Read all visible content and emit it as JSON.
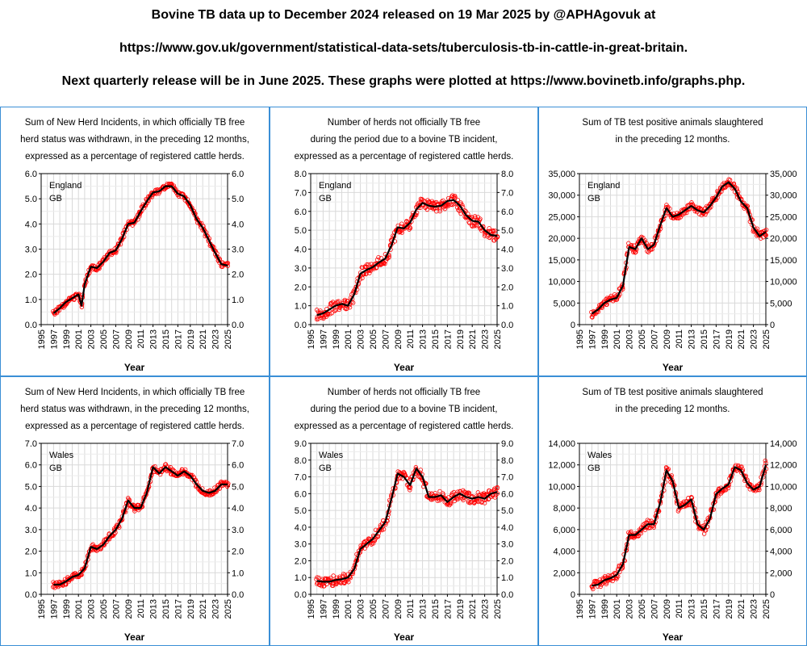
{
  "header": {
    "line1": "Bovine TB data up to December 2024 released on 19 Mar 2025 by @APHAgovuk at",
    "line2": "https://www.gov.uk/government/statistical-data-sets/tuberculosis-tb-in-cattle-in-great-britain.",
    "line3": "Next quarterly release will be in June 2025. These graphs were plotted at https://www.bovinetb.info/graphs.php."
  },
  "colors": {
    "border": "#3a8fd6",
    "points": "#ff0000",
    "trend": "#000000",
    "grid": "#d9d9d9"
  },
  "chart_data": [
    {
      "type": "scatter",
      "title_lines": [
        "Sum of New Herd Incidents, in which officially TB free",
        "herd status was withdrawn, in the preceding 12 months,",
        "expressed as a percentage of registered cattle herds."
      ],
      "region": "England",
      "sub": "GB",
      "xlabel": "Year",
      "xlim": [
        1995,
        2025
      ],
      "xticks": [
        "1995",
        "1997",
        "1999",
        "2001",
        "2003",
        "2005",
        "2007",
        "2009",
        "2011",
        "2013",
        "2015",
        "2017",
        "2019",
        "2021",
        "2023",
        "2025"
      ],
      "ylim": [
        0,
        6
      ],
      "yticks": [
        "0.0",
        "1.0",
        "2.0",
        "3.0",
        "4.0",
        "5.0",
        "6.0"
      ],
      "trend": [
        [
          1997,
          0.45
        ],
        [
          1998,
          0.65
        ],
        [
          1999,
          0.9
        ],
        [
          2000,
          1.05
        ],
        [
          2001,
          1.2
        ],
        [
          2001.5,
          0.75
        ],
        [
          2002,
          1.6
        ],
        [
          2003,
          2.3
        ],
        [
          2004,
          2.25
        ],
        [
          2005,
          2.5
        ],
        [
          2006,
          2.85
        ],
        [
          2007,
          2.95
        ],
        [
          2008,
          3.4
        ],
        [
          2009,
          4.0
        ],
        [
          2010,
          4.05
        ],
        [
          2011,
          4.5
        ],
        [
          2012,
          4.9
        ],
        [
          2013,
          5.25
        ],
        [
          2014,
          5.3
        ],
        [
          2015,
          5.5
        ],
        [
          2016,
          5.5
        ],
        [
          2017,
          5.2
        ],
        [
          2018,
          5.1
        ],
        [
          2019,
          4.75
        ],
        [
          2020,
          4.2
        ],
        [
          2021,
          3.85
        ],
        [
          2022,
          3.35
        ],
        [
          2023,
          2.85
        ],
        [
          2024,
          2.4
        ],
        [
          2025,
          2.35
        ]
      ],
      "jitter": 0.1
    },
    {
      "type": "scatter",
      "title_lines": [
        "Number of herds not officially TB free",
        "during the period due to a bovine TB incident,",
        "expressed as a percentage of registered cattle herds."
      ],
      "region": "England",
      "sub": "GB",
      "xlabel": "Year",
      "xlim": [
        1995,
        2025
      ],
      "xticks": [
        "1995",
        "1997",
        "1999",
        "2001",
        "2003",
        "2005",
        "2007",
        "2009",
        "2011",
        "2013",
        "2015",
        "2017",
        "2019",
        "2021",
        "2023",
        "2025"
      ],
      "ylim": [
        0,
        8
      ],
      "yticks": [
        "0.0",
        "1.0",
        "2.0",
        "3.0",
        "4.0",
        "5.0",
        "6.0",
        "7.0",
        "8.0"
      ],
      "trend": [
        [
          1996,
          0.5
        ],
        [
          1997,
          0.6
        ],
        [
          1998,
          0.8
        ],
        [
          1999,
          1.0
        ],
        [
          2000,
          1.1
        ],
        [
          2001,
          1.0
        ],
        [
          2002,
          1.6
        ],
        [
          2003,
          2.7
        ],
        [
          2004,
          2.9
        ],
        [
          2005,
          3.05
        ],
        [
          2006,
          3.3
        ],
        [
          2007,
          3.5
        ],
        [
          2008,
          4.2
        ],
        [
          2009,
          5.15
        ],
        [
          2010,
          5.1
        ],
        [
          2011,
          5.4
        ],
        [
          2012,
          6.1
        ],
        [
          2013,
          6.45
        ],
        [
          2014,
          6.3
        ],
        [
          2015,
          6.25
        ],
        [
          2016,
          6.3
        ],
        [
          2017,
          6.55
        ],
        [
          2018,
          6.6
        ],
        [
          2019,
          6.3
        ],
        [
          2020,
          5.8
        ],
        [
          2021,
          5.5
        ],
        [
          2022,
          5.45
        ],
        [
          2023,
          5.0
        ],
        [
          2024,
          4.75
        ],
        [
          2025,
          4.7
        ]
      ],
      "jitter": 0.3
    },
    {
      "type": "scatter",
      "title_lines": [
        "Sum of TB test positive animals slaughtered",
        "in the preceding 12 months."
      ],
      "region": "England",
      "sub": "GB",
      "xlabel": "Year",
      "xlim": [
        1995,
        2025
      ],
      "xticks": [
        "1995",
        "1997",
        "1999",
        "2001",
        "2003",
        "2005",
        "2007",
        "2009",
        "2011",
        "2013",
        "2015",
        "2017",
        "2019",
        "2021",
        "2023",
        "2025"
      ],
      "ylim": [
        0,
        35000
      ],
      "yticks": [
        "0",
        "5,000",
        "10,000",
        "15,000",
        "20,000",
        "25,000",
        "30,000",
        "35,000"
      ],
      "trend": [
        [
          1997,
          2500
        ],
        [
          1998,
          3500
        ],
        [
          1999,
          5000
        ],
        [
          2000,
          5800
        ],
        [
          2001,
          6200
        ],
        [
          2002,
          9000
        ],
        [
          2003,
          18000
        ],
        [
          2004,
          17500
        ],
        [
          2005,
          20000
        ],
        [
          2006,
          17500
        ],
        [
          2007,
          18500
        ],
        [
          2008,
          23000
        ],
        [
          2009,
          27000
        ],
        [
          2010,
          25000
        ],
        [
          2011,
          25500
        ],
        [
          2012,
          26500
        ],
        [
          2013,
          27500
        ],
        [
          2014,
          26500
        ],
        [
          2015,
          26000
        ],
        [
          2016,
          27500
        ],
        [
          2017,
          29500
        ],
        [
          2018,
          32000
        ],
        [
          2019,
          33000
        ],
        [
          2020,
          31500
        ],
        [
          2021,
          28500
        ],
        [
          2022,
          27000
        ],
        [
          2023,
          22500
        ],
        [
          2024,
          20500
        ],
        [
          2025,
          21500
        ]
      ],
      "jitter": 900
    },
    {
      "type": "scatter",
      "title_lines": [
        "Sum of New Herd Incidents, in which officially TB free",
        "herd status was withdrawn, in the preceding 12 months,",
        "expressed as a percentage of registered cattle herds."
      ],
      "region": "Wales",
      "sub": "GB",
      "xlabel": "Year",
      "xlim": [
        1995,
        2025
      ],
      "xticks": [
        "1995",
        "1997",
        "1999",
        "2001",
        "2003",
        "2005",
        "2007",
        "2009",
        "2011",
        "2013",
        "2015",
        "2017",
        "2019",
        "2021",
        "2023",
        "2025"
      ],
      "ylim": [
        0,
        7
      ],
      "yticks": [
        "0.0",
        "1.0",
        "2.0",
        "3.0",
        "4.0",
        "5.0",
        "6.0",
        "7.0"
      ],
      "trend": [
        [
          1997,
          0.45
        ],
        [
          1998,
          0.45
        ],
        [
          1999,
          0.6
        ],
        [
          2000,
          0.8
        ],
        [
          2001,
          0.9
        ],
        [
          2002,
          1.2
        ],
        [
          2003,
          2.2
        ],
        [
          2004,
          2.1
        ],
        [
          2005,
          2.3
        ],
        [
          2006,
          2.7
        ],
        [
          2007,
          3.0
        ],
        [
          2008,
          3.5
        ],
        [
          2009,
          4.35
        ],
        [
          2010,
          4.0
        ],
        [
          2011,
          4.0
        ],
        [
          2012,
          4.7
        ],
        [
          2013,
          5.9
        ],
        [
          2014,
          5.6
        ],
        [
          2015,
          5.9
        ],
        [
          2016,
          5.7
        ],
        [
          2017,
          5.5
        ],
        [
          2018,
          5.7
        ],
        [
          2019,
          5.5
        ],
        [
          2020,
          5.1
        ],
        [
          2021,
          4.8
        ],
        [
          2022,
          4.7
        ],
        [
          2023,
          4.8
        ],
        [
          2024,
          5.1
        ],
        [
          2025,
          5.1
        ]
      ],
      "jitter": 0.15
    },
    {
      "type": "scatter",
      "title_lines": [
        "Number of herds not officially TB free",
        "during the period due to a bovine TB incident,",
        "expressed as a percentage of registered cattle herds."
      ],
      "region": "Wales",
      "sub": "GB",
      "xlabel": "Year",
      "xlim": [
        1995,
        2025
      ],
      "xticks": [
        "1995",
        "1997",
        "1999",
        "2001",
        "2003",
        "2005",
        "2007",
        "2009",
        "2011",
        "2013",
        "2015",
        "2017",
        "2019",
        "2021",
        "2023",
        "2025"
      ],
      "ylim": [
        0,
        9
      ],
      "yticks": [
        "0.0",
        "1.0",
        "2.0",
        "3.0",
        "4.0",
        "5.0",
        "6.0",
        "7.0",
        "8.0",
        "9.0"
      ],
      "trend": [
        [
          1996,
          0.8
        ],
        [
          1997,
          0.75
        ],
        [
          1998,
          0.75
        ],
        [
          1999,
          0.85
        ],
        [
          2000,
          0.9
        ],
        [
          2001,
          1.0
        ],
        [
          2002,
          1.5
        ],
        [
          2003,
          2.7
        ],
        [
          2004,
          3.0
        ],
        [
          2005,
          3.3
        ],
        [
          2006,
          3.8
        ],
        [
          2007,
          4.3
        ],
        [
          2008,
          5.7
        ],
        [
          2009,
          7.2
        ],
        [
          2010,
          7.0
        ],
        [
          2011,
          6.5
        ],
        [
          2012,
          7.5
        ],
        [
          2013,
          7.0
        ],
        [
          2014,
          5.8
        ],
        [
          2015,
          5.8
        ],
        [
          2016,
          5.9
        ],
        [
          2017,
          5.5
        ],
        [
          2018,
          5.8
        ],
        [
          2019,
          6.0
        ],
        [
          2020,
          5.8
        ],
        [
          2021,
          5.7
        ],
        [
          2022,
          5.8
        ],
        [
          2023,
          5.7
        ],
        [
          2024,
          6.0
        ],
        [
          2025,
          6.1
        ]
      ],
      "jitter": 0.3
    },
    {
      "type": "scatter",
      "title_lines": [
        "Sum of TB test positive animals slaughtered",
        "in the preceding 12 months."
      ],
      "region": "Wales",
      "sub": "GB",
      "xlabel": "Year",
      "xlim": [
        1995,
        2025
      ],
      "xticks": [
        "1995",
        "1997",
        "1999",
        "2001",
        "2003",
        "2005",
        "2007",
        "2009",
        "2011",
        "2013",
        "2015",
        "2017",
        "2019",
        "2021",
        "2023",
        "2025"
      ],
      "ylim": [
        0,
        14000
      ],
      "yticks": [
        "0",
        "2,000",
        "4,000",
        "6,000",
        "8,000",
        "10,000",
        "12,000",
        "14,000"
      ],
      "trend": [
        [
          1997,
          800
        ],
        [
          1998,
          900
        ],
        [
          1999,
          1300
        ],
        [
          2000,
          1500
        ],
        [
          2001,
          1800
        ],
        [
          2002,
          2800
        ],
        [
          2003,
          5500
        ],
        [
          2004,
          5500
        ],
        [
          2005,
          6000
        ],
        [
          2006,
          6500
        ],
        [
          2007,
          6500
        ],
        [
          2008,
          8500
        ],
        [
          2009,
          11500
        ],
        [
          2010,
          10500
        ],
        [
          2011,
          8000
        ],
        [
          2012,
          8300
        ],
        [
          2013,
          8800
        ],
        [
          2014,
          6500
        ],
        [
          2015,
          6000
        ],
        [
          2016,
          7000
        ],
        [
          2017,
          9300
        ],
        [
          2018,
          9800
        ],
        [
          2019,
          10200
        ],
        [
          2020,
          11800
        ],
        [
          2021,
          11500
        ],
        [
          2022,
          10300
        ],
        [
          2023,
          9700
        ],
        [
          2024,
          10000
        ],
        [
          2025,
          12000
        ]
      ],
      "jitter": 400
    }
  ]
}
